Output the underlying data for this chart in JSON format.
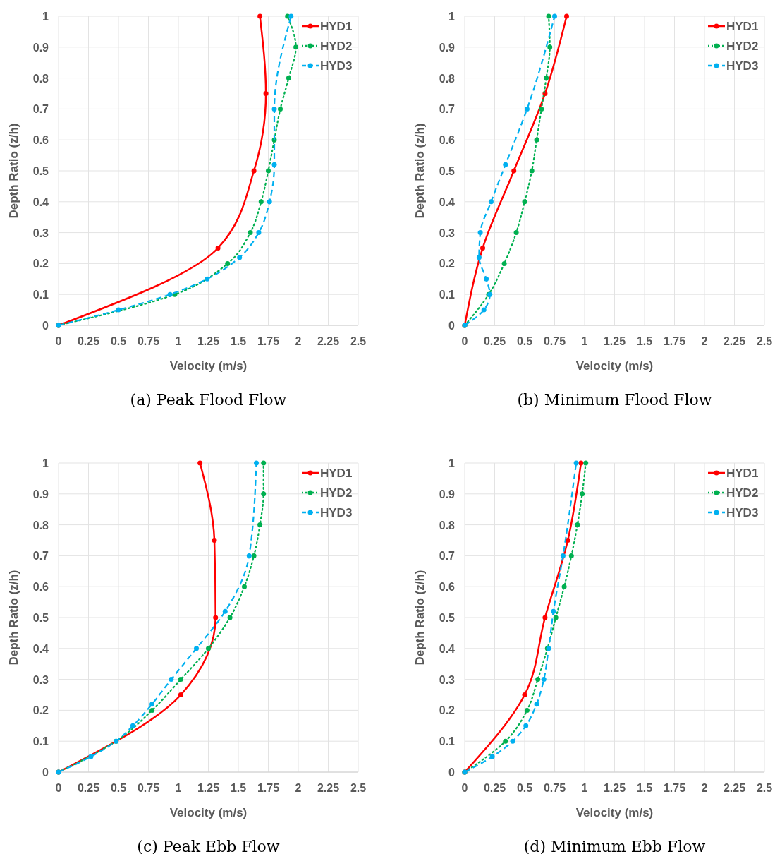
{
  "chart_data": [
    {
      "type": "line",
      "xlabel": "Velocity (m/s)",
      "ylabel": "Depth Ratio (z/h)",
      "annotations": [
        "(a) Peak Flood Flow"
      ],
      "xlim": [
        0,
        2.5
      ],
      "xticks": [
        0,
        0.25,
        0.5,
        0.75,
        1,
        1.25,
        1.5,
        1.75,
        2,
        2.25,
        2.5
      ],
      "ylim": [
        0,
        1
      ],
      "yticks": [
        0,
        0.1,
        0.2,
        0.3,
        0.4,
        0.5,
        0.6,
        0.7,
        0.8,
        0.9,
        1
      ],
      "grid": true,
      "legend": "top right",
      "marker": "circle",
      "series": [
        {
          "name": "HYD1",
          "color": "#ff0000",
          "line_style": "solid",
          "x": [
            0,
            1.33,
            1.63,
            1.73,
            1.68
          ],
          "values": [
            0,
            0.25,
            0.5,
            0.75,
            1
          ]
        },
        {
          "name": "HYD2",
          "color": "#00b050",
          "line_style": "dotted",
          "x": [
            0,
            0.97,
            1.41,
            1.6,
            1.69,
            1.75,
            1.8,
            1.85,
            1.92,
            1.98,
            1.91
          ],
          "values": [
            0,
            0.1,
            0.2,
            0.3,
            0.4,
            0.5,
            0.6,
            0.7,
            0.8,
            0.9,
            1
          ]
        },
        {
          "name": "HYD3",
          "color": "#00b0f0",
          "line_style": "dashed",
          "x": [
            0,
            0.5,
            0.93,
            1.24,
            1.51,
            1.67,
            1.76,
            1.8,
            1.8,
            1.94
          ],
          "values": [
            0,
            0.05,
            0.1,
            0.15,
            0.22,
            0.3,
            0.4,
            0.52,
            0.7,
            1
          ]
        }
      ]
    },
    {
      "type": "line",
      "xlabel": "Velocity (m/s)",
      "ylabel": "Depth Ratio (z/h)",
      "annotations": [
        "(b) Minimum Flood Flow"
      ],
      "xlim": [
        0,
        2.5
      ],
      "xticks": [
        0,
        0.25,
        0.5,
        0.75,
        1,
        1.25,
        1.5,
        1.75,
        2,
        2.25,
        2.5
      ],
      "ylim": [
        0,
        1
      ],
      "yticks": [
        0,
        0.1,
        0.2,
        0.3,
        0.4,
        0.5,
        0.6,
        0.7,
        0.8,
        0.9,
        1
      ],
      "grid": true,
      "legend": "top right",
      "marker": "circle",
      "series": [
        {
          "name": "HYD1",
          "color": "#ff0000",
          "line_style": "solid",
          "x": [
            0,
            0.15,
            0.41,
            0.67,
            0.85
          ],
          "values": [
            0,
            0.25,
            0.5,
            0.75,
            1
          ]
        },
        {
          "name": "HYD2",
          "color": "#00b050",
          "line_style": "dotted",
          "x": [
            0,
            0.2,
            0.33,
            0.43,
            0.5,
            0.56,
            0.6,
            0.64,
            0.68,
            0.71,
            0.7
          ],
          "values": [
            0,
            0.1,
            0.2,
            0.3,
            0.4,
            0.5,
            0.6,
            0.7,
            0.8,
            0.9,
            1
          ]
        },
        {
          "name": "HYD3",
          "color": "#00b0f0",
          "line_style": "dashed",
          "x": [
            0,
            0.16,
            0.21,
            0.18,
            0.12,
            0.13,
            0.22,
            0.34,
            0.52,
            0.75
          ],
          "values": [
            0,
            0.05,
            0.1,
            0.15,
            0.22,
            0.3,
            0.4,
            0.52,
            0.7,
            1
          ]
        }
      ]
    },
    {
      "type": "line",
      "xlabel": "Velocity (m/s)",
      "ylabel": "Depth Ratio (z/h)",
      "annotations": [
        "(c) Peak Ebb Flow"
      ],
      "xlim": [
        0,
        2.5
      ],
      "xticks": [
        0,
        0.25,
        0.5,
        0.75,
        1,
        1.25,
        1.5,
        1.75,
        2,
        2.25,
        2.5
      ],
      "ylim": [
        0,
        1
      ],
      "yticks": [
        0,
        0.1,
        0.2,
        0.3,
        0.4,
        0.5,
        0.6,
        0.7,
        0.8,
        0.9,
        1
      ],
      "grid": true,
      "legend": "top right",
      "marker": "circle",
      "series": [
        {
          "name": "HYD1",
          "color": "#ff0000",
          "line_style": "solid",
          "x": [
            0,
            1.02,
            1.31,
            1.3,
            1.18
          ],
          "values": [
            0,
            0.25,
            0.5,
            0.75,
            1
          ]
        },
        {
          "name": "HYD2",
          "color": "#00b050",
          "line_style": "dotted",
          "x": [
            0,
            0.48,
            0.78,
            1.02,
            1.25,
            1.43,
            1.55,
            1.63,
            1.68,
            1.71,
            1.71
          ],
          "values": [
            0,
            0.1,
            0.2,
            0.3,
            0.4,
            0.5,
            0.6,
            0.7,
            0.8,
            0.9,
            1
          ]
        },
        {
          "name": "HYD3",
          "color": "#00b0f0",
          "line_style": "dashed",
          "x": [
            0,
            0.27,
            0.48,
            0.62,
            0.78,
            0.94,
            1.15,
            1.39,
            1.59,
            1.65
          ],
          "values": [
            0,
            0.05,
            0.1,
            0.15,
            0.22,
            0.3,
            0.4,
            0.52,
            0.7,
            1
          ]
        }
      ]
    },
    {
      "type": "line",
      "xlabel": "Velocity (m/s)",
      "ylabel": "Depth Ratio (z/h)",
      "annotations": [
        "(d) Minimum Ebb Flow"
      ],
      "xlim": [
        0,
        2.5
      ],
      "xticks": [
        0,
        0.25,
        0.5,
        0.75,
        1,
        1.25,
        1.5,
        1.75,
        2,
        2.25,
        2.5
      ],
      "ylim": [
        0,
        1
      ],
      "yticks": [
        0,
        0.1,
        0.2,
        0.3,
        0.4,
        0.5,
        0.6,
        0.7,
        0.8,
        0.9,
        1
      ],
      "grid": true,
      "legend": "top right",
      "marker": "circle",
      "series": [
        {
          "name": "HYD1",
          "color": "#ff0000",
          "line_style": "solid",
          "x": [
            0,
            0.5,
            0.67,
            0.86,
            0.97
          ],
          "values": [
            0,
            0.25,
            0.5,
            0.75,
            1
          ]
        },
        {
          "name": "HYD2",
          "color": "#00b050",
          "line_style": "dotted",
          "x": [
            0,
            0.34,
            0.52,
            0.61,
            0.69,
            0.76,
            0.83,
            0.89,
            0.94,
            0.98,
            1.01
          ],
          "values": [
            0,
            0.1,
            0.2,
            0.3,
            0.4,
            0.5,
            0.6,
            0.7,
            0.8,
            0.9,
            1
          ]
        },
        {
          "name": "HYD3",
          "color": "#00b0f0",
          "line_style": "dashed",
          "x": [
            0,
            0.23,
            0.4,
            0.51,
            0.6,
            0.66,
            0.7,
            0.74,
            0.82,
            0.93
          ],
          "values": [
            0,
            0.05,
            0.1,
            0.15,
            0.22,
            0.3,
            0.4,
            0.52,
            0.7,
            1
          ]
        }
      ]
    }
  ]
}
